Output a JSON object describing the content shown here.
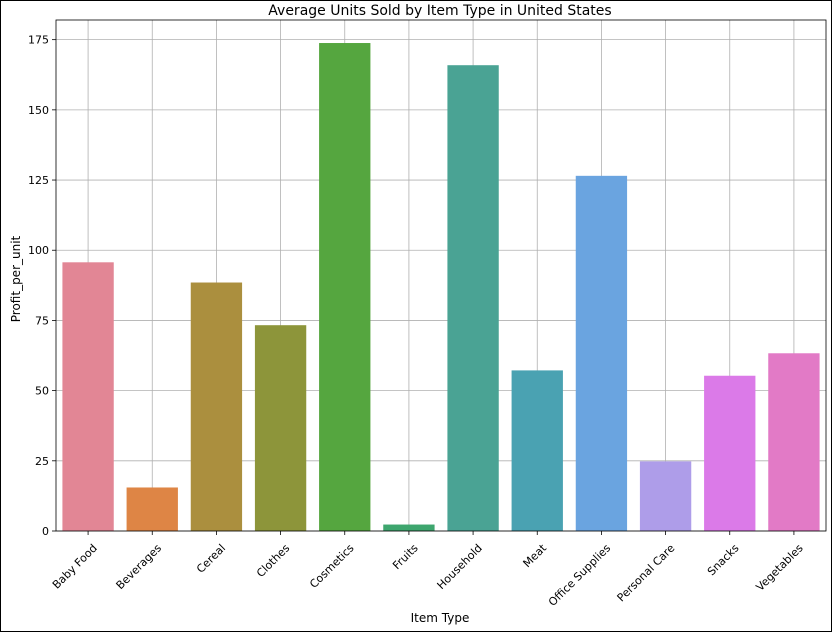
{
  "chart_data": {
    "type": "bar",
    "title": "Average Units Sold by Item Type in United States",
    "xlabel": "Item Type",
    "ylabel": "Profit_per_unit",
    "categories": [
      "Baby Food",
      "Beverages",
      "Cereal",
      "Clothes",
      "Cosmetics",
      "Fruits",
      "Household",
      "Meat",
      "Office Supplies",
      "Personal Care",
      "Snacks",
      "Vegetables"
    ],
    "values": [
      95.7,
      15.5,
      88.5,
      73.3,
      173.8,
      2.3,
      165.9,
      57.2,
      126.5,
      24.8,
      55.3,
      63.3
    ],
    "colors": [
      "#e28695",
      "#de8545",
      "#ab8f3e",
      "#8d953a",
      "#55a63f",
      "#3ea66e",
      "#4aa394",
      "#4aa2b2",
      "#6aa4e0",
      "#ae9de9",
      "#db7ae8",
      "#e27ac6"
    ],
    "ylim": [
      0,
      182
    ],
    "yticks": [
      0,
      25,
      50,
      75,
      100,
      125,
      150,
      175
    ],
    "grid": true
  }
}
